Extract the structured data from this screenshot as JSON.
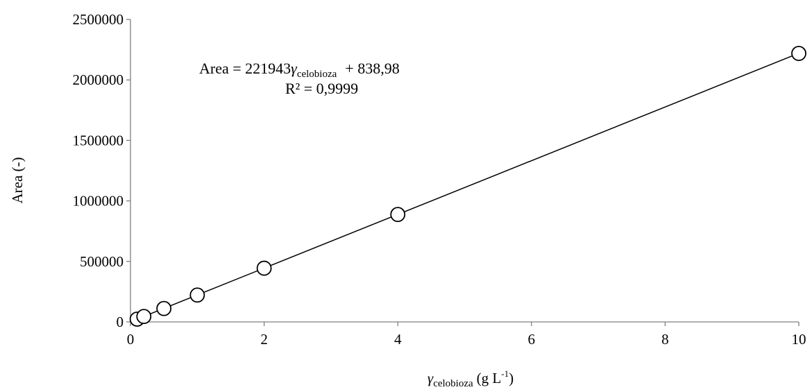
{
  "chart_data": {
    "type": "scatter",
    "x_label": {
      "symbol": "γ",
      "subscript": "celobioza",
      "unit_prefix": "(g L",
      "unit_superscript": "-1",
      "unit_suffix": ")"
    },
    "y_label": "Area (-)",
    "xlim": [
      0,
      10
    ],
    "ylim": [
      0,
      2500000
    ],
    "x_ticks": [
      "0",
      "2",
      "4",
      "6",
      "8",
      "10"
    ],
    "y_ticks": [
      "0",
      "500000",
      "1000000",
      "1500000",
      "2000000",
      "2500000"
    ],
    "series": [
      {
        "marker": "open-circle",
        "x": [
          0.1,
          0.2,
          0.5,
          1,
          2,
          4,
          10
        ],
        "y": [
          23000,
          45000,
          111000,
          222000,
          444000,
          888000,
          2219000
        ]
      }
    ],
    "trendline": {
      "type": "linear",
      "slope": 221943,
      "intercept": 838.98
    },
    "equation": {
      "prefix": "Area = 221943",
      "symbol": "γ",
      "subscript": "celobioza",
      "suffix": "+ 838,98"
    },
    "r_squared": "R² = 0,9999",
    "grid": false,
    "legend": "none"
  },
  "colors": {
    "axis": "#7f7f7f",
    "line": "#000000",
    "marker_stroke": "#000000",
    "marker_fill": "#ffffff"
  }
}
